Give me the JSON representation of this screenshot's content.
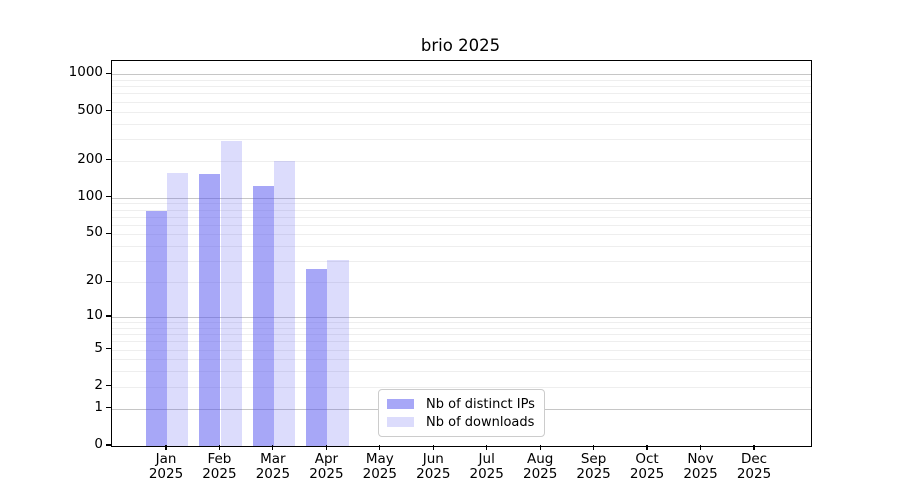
{
  "chart_data": {
    "type": "bar",
    "title": "brio 2025",
    "categories": [
      "Jan",
      "Feb",
      "Mar",
      "Apr",
      "May",
      "Jun",
      "Jul",
      "Aug",
      "Sep",
      "Oct",
      "Nov",
      "Dec"
    ],
    "year_label": "2025",
    "series": [
      {
        "name": "Nb of distinct IPs",
        "color": "rgba(80,80,240,0.5)",
        "values": [
          78,
          155,
          125,
          26,
          0,
          0,
          0,
          0,
          0,
          0,
          0,
          0
        ]
      },
      {
        "name": "Nb of downloads",
        "color": "rgba(80,80,240,0.2)",
        "values": [
          160,
          290,
          200,
          31,
          0,
          0,
          0,
          0,
          0,
          0,
          0,
          0
        ]
      }
    ],
    "yscale": "log10(1+value)",
    "ylim": [
      0,
      1280
    ],
    "yticks": [
      0,
      1,
      2,
      5,
      10,
      20,
      50,
      100,
      200,
      500,
      1000
    ],
    "grid": {
      "major": [
        1,
        10,
        100,
        1000
      ],
      "minor": [
        2,
        3,
        4,
        5,
        6,
        7,
        8,
        9,
        20,
        30,
        40,
        50,
        60,
        70,
        80,
        90,
        200,
        300,
        400,
        500,
        600,
        700,
        800,
        900
      ],
      "major_color": "#c6c6c6",
      "minor_color": "#eeeeee"
    },
    "legend_position": "lower center-right",
    "xlabel": "",
    "ylabel": ""
  }
}
